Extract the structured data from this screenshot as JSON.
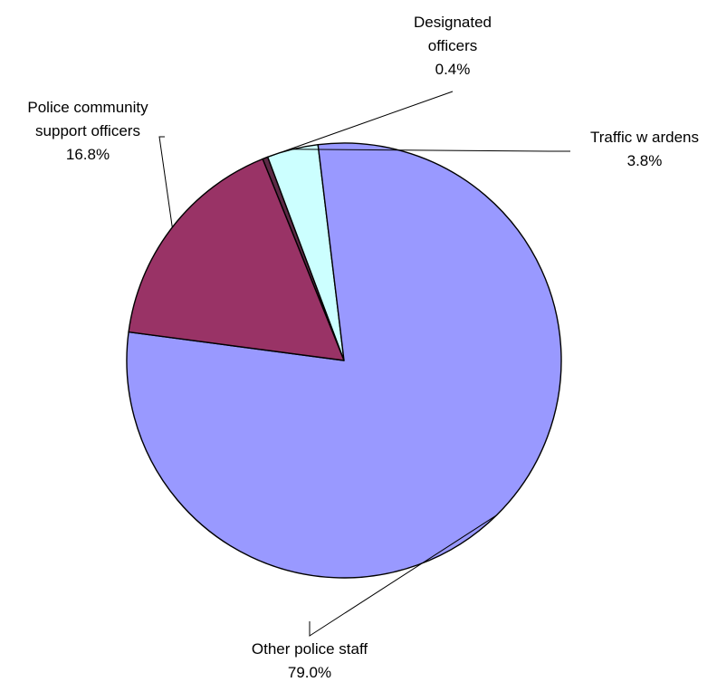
{
  "chart_data": {
    "type": "pie",
    "title": "",
    "slices": [
      {
        "label_lines": [
          "Designated",
          "officers"
        ],
        "percent_text": "0.4%",
        "value": 0.4,
        "color": "#5c2a46"
      },
      {
        "label_lines": [
          "Traffic w ardens"
        ],
        "percent_text": "3.8%",
        "value": 3.8,
        "color": "#ccffff"
      },
      {
        "label_lines": [
          "Other police staff"
        ],
        "percent_text": "79.0%",
        "value": 79.0,
        "color": "#9999ff"
      },
      {
        "label_lines": [
          "Police community",
          "support officers"
        ],
        "percent_text": "16.8%",
        "value": 16.8,
        "color": "#993366"
      }
    ]
  }
}
